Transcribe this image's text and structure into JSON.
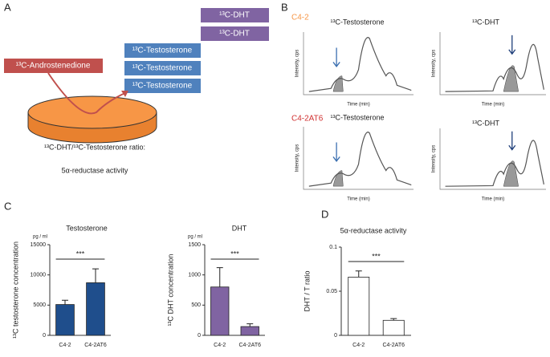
{
  "panels": [
    "A",
    "B",
    "C",
    "D"
  ],
  "diagram": {
    "dht_boxes": [
      "¹³C-DHT",
      "¹³C-DHT"
    ],
    "testosterone_boxes": [
      "¹³C-Testosterone",
      "¹³C-Testosterone",
      "¹³C-Testosterone"
    ],
    "substrate": "¹³C-Androstenedione",
    "ratio_label": "¹³C-DHT/¹³C-Testosterone ratio:",
    "activity_label": "5α-reductase activity"
  },
  "chromatograms": {
    "cell_lines": [
      "C4-2",
      "C4-2AT6"
    ],
    "titles": [
      "¹³C-Testosterone",
      "¹³C-DHT",
      "¹³C-Testosterone",
      "¹³C-DHT"
    ],
    "y_label": "Intensity, cps",
    "x_label": "Time (min)"
  },
  "chart_data": [
    {
      "type": "bar",
      "title": "Testosterone",
      "unit": "pg / ml",
      "y_label": "¹³C testosterone concentration",
      "categories": [
        "C4-2",
        "C4-2AT6"
      ],
      "values": [
        5100,
        8700
      ],
      "errors": [
        700,
        2300
      ],
      "color": "#1f4e8c",
      "ylim": [
        0,
        15000
      ],
      "yticks": [
        0,
        5000,
        10000,
        15000
      ],
      "significance": "***"
    },
    {
      "type": "bar",
      "title": "DHT",
      "unit": "pg / ml",
      "y_label": "¹³C DHT concentration",
      "categories": [
        "C4-2",
        "C4-2AT6"
      ],
      "values": [
        800,
        145
      ],
      "errors": [
        320,
        45
      ],
      "color": "#8064a2",
      "ylim": [
        0,
        1500
      ],
      "yticks": [
        0,
        500,
        1000,
        1500
      ],
      "significance": "***"
    },
    {
      "type": "bar",
      "title": "5α-reductase activity",
      "y_label": "DHT / T ratio",
      "categories": [
        "C4-2",
        "C4-2AT6"
      ],
      "values": [
        0.066,
        0.017
      ],
      "errors": [
        0.007,
        0.002
      ],
      "color": "#ffffff",
      "ylim": [
        0,
        0.1
      ],
      "yticks": [
        0,
        0.05,
        0.1
      ],
      "significance": "***"
    }
  ]
}
